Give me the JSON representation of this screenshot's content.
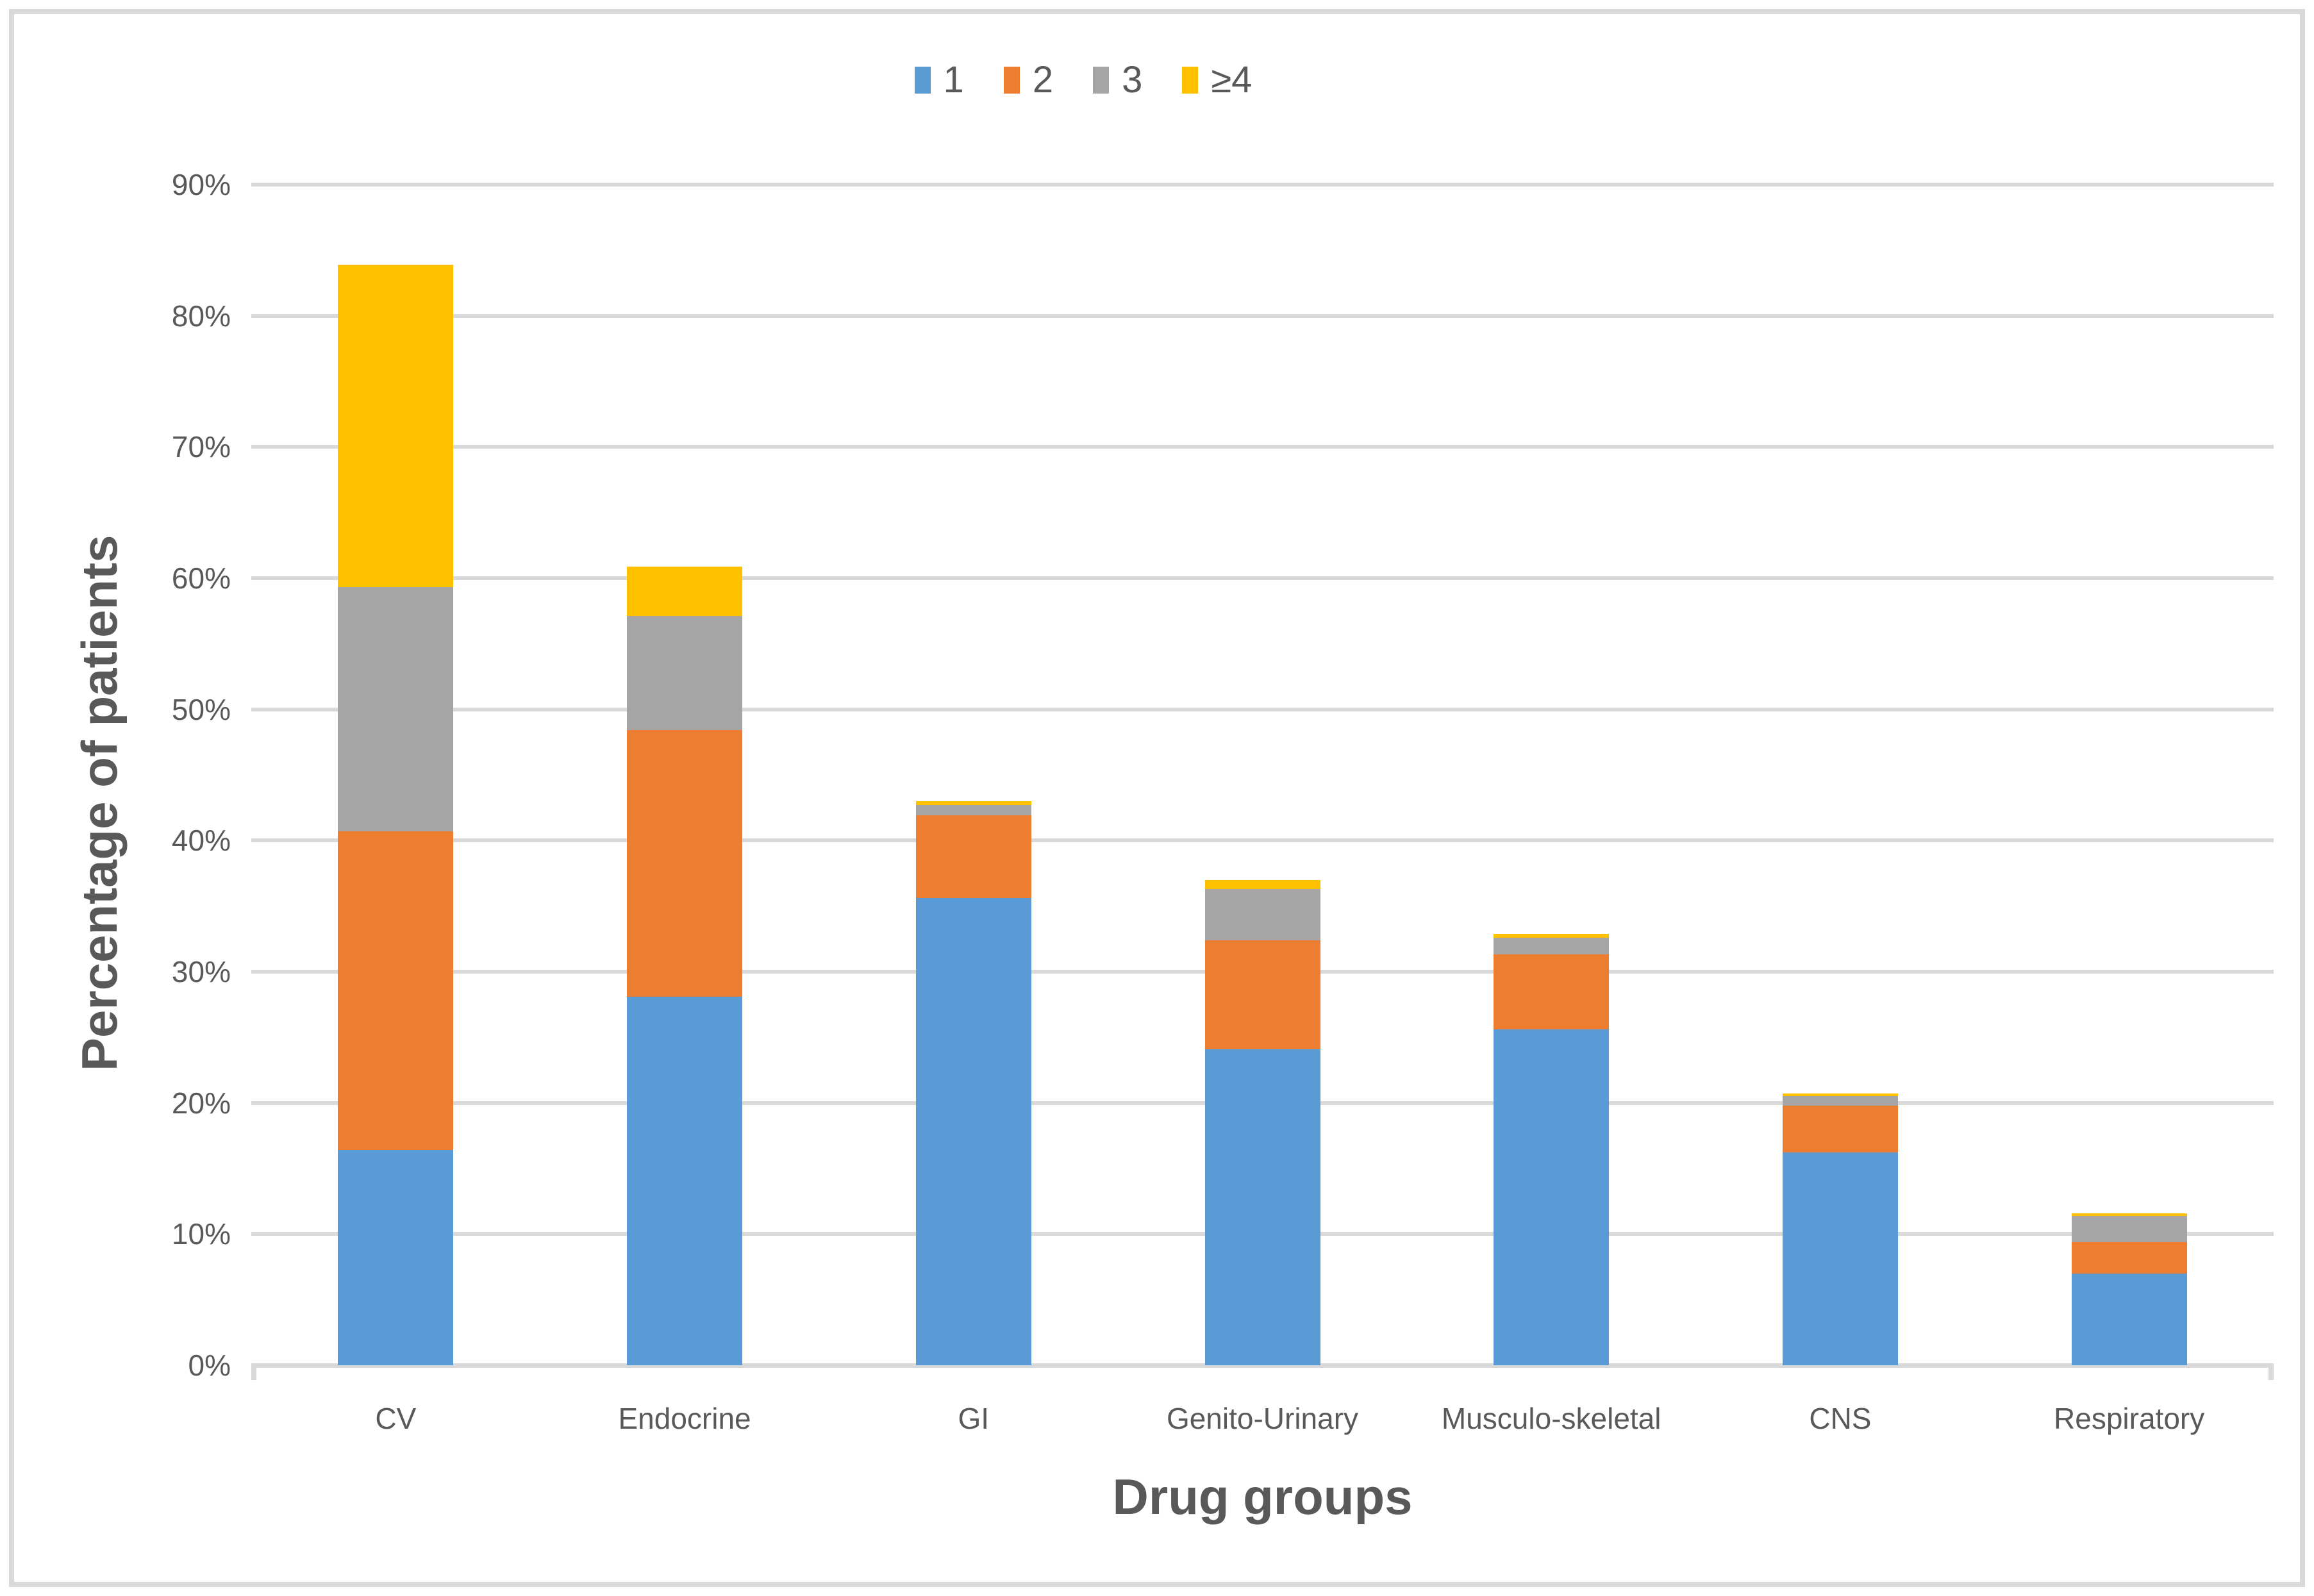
{
  "chart_data": {
    "type": "bar",
    "stacked": true,
    "title": "",
    "xlabel": "Drug groups",
    "ylabel": "Percentage of patients",
    "categories": [
      "CV",
      "Endocrine",
      "GI",
      "Genito-Urinary",
      "Musculo-skeletal",
      "CNS",
      "Respiratory"
    ],
    "series": [
      {
        "name": "1",
        "color": "#5B9BD5",
        "values": [
          16.4,
          28.1,
          35.6,
          24.1,
          25.6,
          16.2,
          7.0
        ]
      },
      {
        "name": "2",
        "color": "#ED7D31",
        "values": [
          24.3,
          20.3,
          6.3,
          8.3,
          5.7,
          3.6,
          2.4
        ]
      },
      {
        "name": "3",
        "color": "#A5A5A5",
        "values": [
          18.6,
          8.7,
          0.8,
          3.9,
          1.3,
          0.7,
          2.0
        ]
      },
      {
        "name": "≥4",
        "color": "#FFC000",
        "values": [
          24.6,
          3.8,
          0.3,
          0.7,
          0.3,
          0.2,
          0.2
        ]
      }
    ],
    "stacked_totals": [
      83.9,
      60.9,
      43.0,
      37.0,
      32.9,
      20.7,
      11.6
    ],
    "ylim": [
      0,
      90
    ],
    "ytick_step": 10,
    "ytick_labels": [
      "0%",
      "10%",
      "20%",
      "30%",
      "40%",
      "50%",
      "60%",
      "70%",
      "80%",
      "90%"
    ],
    "legend_position": "top",
    "legend_labels": [
      "1",
      "2",
      "3",
      "≥4"
    ],
    "grid": "horizontal",
    "gridline_color": "#D9D9D9",
    "text_color": "#595959"
  }
}
